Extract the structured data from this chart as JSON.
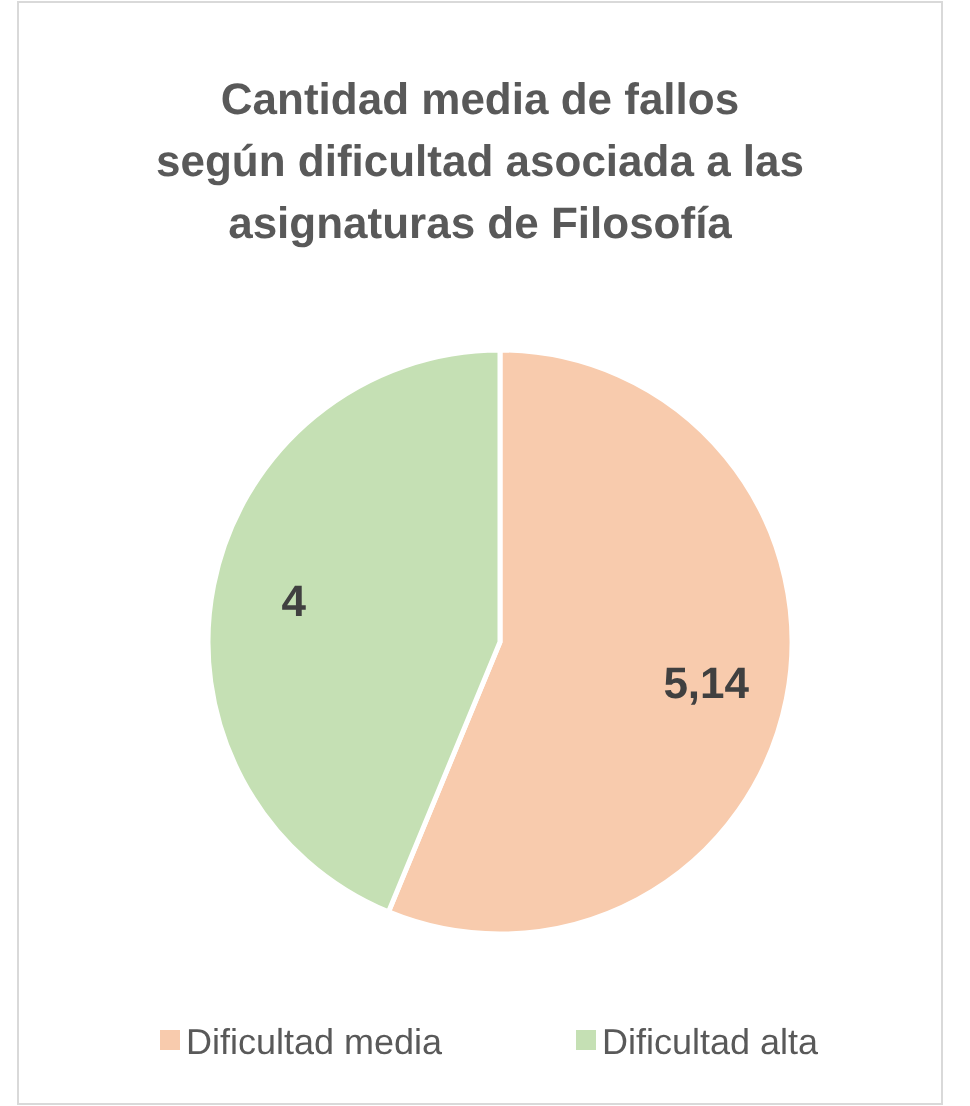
{
  "chart_data": {
    "type": "pie",
    "title": "Cantidad media de fallos\nsegún dificultad asociada a las\nasignaturas de Filosofía",
    "categories": [
      "Dificultad media",
      "Dificultad alta"
    ],
    "values": [
      5.14,
      4
    ],
    "colors": [
      "#f8cbad",
      "#c5e0b4"
    ],
    "value_labels": [
      "5,14",
      "4"
    ],
    "legend": "bottom"
  }
}
